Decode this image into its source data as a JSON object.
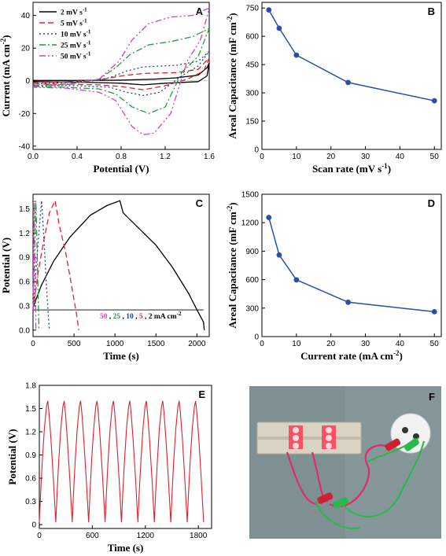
{
  "chart_data": [
    {
      "panel": "A",
      "type": "line",
      "xlabel": "Potential (V)",
      "ylabel": "Current (mA cm",
      "ylabel_sup": "-2",
      "ylabel_end": ")",
      "xlim": [
        0,
        1.6
      ],
      "ylim": [
        -42,
        48
      ],
      "xticks": [
        0.0,
        0.4,
        0.8,
        1.2,
        1.6
      ],
      "xtick_labels": [
        "0.0",
        "0.4",
        "0.8",
        "1.2",
        "1.6"
      ],
      "yticks": [
        -40,
        -20,
        0,
        20,
        40
      ],
      "ytick_labels": [
        "-40",
        "-20",
        "0",
        "20",
        "40"
      ],
      "legend": "top-left",
      "series": [
        {
          "name": "2 mV s",
          "sup": "-1",
          "color": "#000000",
          "dash": "",
          "upper": [
            [
              0,
              0.2
            ],
            [
              0.4,
              0.2
            ],
            [
              0.8,
              0.4
            ],
            [
              1.1,
              1.0
            ],
            [
              1.3,
              1.8
            ],
            [
              1.5,
              3.5
            ],
            [
              1.58,
              8
            ],
            [
              1.6,
              11
            ]
          ],
          "lower": [
            [
              1.6,
              11
            ],
            [
              1.58,
              3
            ],
            [
              1.5,
              -0.5
            ],
            [
              1.2,
              -1.5
            ],
            [
              1.0,
              -2.5
            ],
            [
              0.8,
              -1.5
            ],
            [
              0.4,
              -0.8
            ],
            [
              0,
              -0.5
            ]
          ]
        },
        {
          "name": "5 mV s",
          "sup": "-1",
          "color": "#e0202a",
          "dash": "7,4",
          "upper": [
            [
              0,
              -1.2
            ],
            [
              0.3,
              -0.5
            ],
            [
              0.6,
              0.5
            ],
            [
              0.8,
              3
            ],
            [
              1.0,
              4.5
            ],
            [
              1.3,
              5
            ],
            [
              1.5,
              7
            ],
            [
              1.6,
              14
            ]
          ],
          "lower": [
            [
              1.6,
              14
            ],
            [
              1.55,
              6
            ],
            [
              1.4,
              1
            ],
            [
              1.2,
              -3
            ],
            [
              1.0,
              -5.5
            ],
            [
              0.8,
              -3.5
            ],
            [
              0.6,
              -2.5
            ],
            [
              0.3,
              -2
            ],
            [
              0,
              -2
            ]
          ]
        },
        {
          "name": "10 mV s",
          "sup": "-1",
          "color": "#22439a",
          "dash": "2,3",
          "upper": [
            [
              0,
              -2
            ],
            [
              0.3,
              -1
            ],
            [
              0.55,
              0
            ],
            [
              0.7,
              2
            ],
            [
              0.85,
              6
            ],
            [
              1.0,
              8.5
            ],
            [
              1.3,
              9.5
            ],
            [
              1.5,
              12
            ],
            [
              1.6,
              18
            ]
          ],
          "lower": [
            [
              1.6,
              18
            ],
            [
              1.5,
              9
            ],
            [
              1.35,
              3
            ],
            [
              1.15,
              -7
            ],
            [
              1.0,
              -9
            ],
            [
              0.85,
              -7
            ],
            [
              0.7,
              -4
            ],
            [
              0.4,
              -3
            ],
            [
              0,
              -2.8
            ]
          ]
        },
        {
          "name": "25 mV s",
          "sup": "-1",
          "color": "#1e9e38",
          "dash": "8,3,2,3",
          "upper": [
            [
              0,
              -3
            ],
            [
              0.3,
              -2
            ],
            [
              0.6,
              1
            ],
            [
              0.75,
              8
            ],
            [
              0.88,
              16
            ],
            [
              1.05,
              22
            ],
            [
              1.25,
              24
            ],
            [
              1.45,
              27
            ],
            [
              1.6,
              32
            ]
          ],
          "lower": [
            [
              1.6,
              32
            ],
            [
              1.5,
              15
            ],
            [
              1.35,
              5
            ],
            [
              1.2,
              -16
            ],
            [
              1.05,
              -20
            ],
            [
              0.9,
              -16
            ],
            [
              0.75,
              -8
            ],
            [
              0.6,
              -5
            ],
            [
              0.3,
              -4
            ],
            [
              0,
              -3.5
            ]
          ]
        },
        {
          "name": "50 mV s",
          "sup": "-1",
          "color": "#d63fbf",
          "dash": "8,3,2,3,2,3",
          "upper": [
            [
              0,
              -3.5
            ],
            [
              0.3,
              -2.5
            ],
            [
              0.6,
              1
            ],
            [
              0.78,
              12
            ],
            [
              0.9,
              25
            ],
            [
              1.05,
              35
            ],
            [
              1.25,
              39
            ],
            [
              1.45,
              40
            ],
            [
              1.58,
              44
            ],
            [
              1.6,
              44
            ]
          ],
          "lower": [
            [
              1.6,
              44
            ],
            [
              1.52,
              25
            ],
            [
              1.4,
              12
            ],
            [
              1.25,
              -20
            ],
            [
              1.1,
              -32
            ],
            [
              1.0,
              -33
            ],
            [
              0.9,
              -28
            ],
            [
              0.75,
              -12
            ],
            [
              0.6,
              -7
            ],
            [
              0.3,
              -4.5
            ],
            [
              0,
              -4
            ]
          ]
        }
      ]
    },
    {
      "panel": "B",
      "type": "line",
      "xlabel": "Scan rate (mV s",
      "xlabel_sup": "-1",
      "xlabel_end": ")",
      "ylabel": "Areal Capacitance (mF cm",
      "ylabel_sup": "-2",
      "ylabel_end": ")",
      "xlim": [
        0,
        52
      ],
      "ylim": [
        0,
        780
      ],
      "xticks": [
        0,
        10,
        20,
        30,
        40,
        50
      ],
      "yticks": [
        0,
        150,
        300,
        450,
        600,
        750
      ],
      "color": "#2a4fa8",
      "x": [
        2,
        5,
        10,
        25,
        50
      ],
      "y": [
        740,
        643,
        500,
        355,
        258
      ]
    },
    {
      "panel": "C",
      "type": "line",
      "xlabel": "Time (s)",
      "ylabel": "Potential (V)",
      "xlim": [
        0,
        2150
      ],
      "ylim": [
        -0.08,
        1.68
      ],
      "xticks": [
        0,
        500,
        1000,
        1500,
        2000
      ],
      "yticks": [
        0.0,
        0.3,
        0.6,
        0.9,
        1.2,
        1.5
      ],
      "ytick_labels": [
        "0.0",
        "0.3",
        "0.6",
        "0.9",
        "1.2",
        "1.5"
      ],
      "hline": 0.25,
      "legend_rates": [
        {
          "text": "50",
          "color": "#d63fbf"
        },
        {
          "text": "25",
          "color": "#1e9e38"
        },
        {
          "text": "10",
          "color": "#22439a"
        },
        {
          "text": "5",
          "color": "#e0202a"
        },
        {
          "text": "2 mA cm",
          "color": "#000000"
        }
      ],
      "legend_sep": ",",
      "legend_sup": "-2",
      "series": [
        {
          "name": "2",
          "color": "#000000",
          "dash": "",
          "points": [
            [
              0,
              0.28
            ],
            [
              100,
              0.55
            ],
            [
              250,
              0.85
            ],
            [
              450,
              1.15
            ],
            [
              700,
              1.42
            ],
            [
              900,
              1.54
            ],
            [
              1060,
              1.6
            ],
            [
              1100,
              1.45
            ],
            [
              1300,
              1.25
            ],
            [
              1500,
              1.05
            ],
            [
              1700,
              0.78
            ],
            [
              1900,
              0.45
            ],
            [
              2000,
              0.25
            ],
            [
              2080,
              0.1
            ],
            [
              2090,
              0
            ]
          ]
        },
        {
          "name": "5",
          "color": "#e0202a",
          "dash": "7,4",
          "points": [
            [
              0,
              0.25
            ],
            [
              60,
              0.7
            ],
            [
              130,
              1.1
            ],
            [
              200,
              1.45
            ],
            [
              270,
              1.6
            ],
            [
              320,
              1.3
            ],
            [
              400,
              0.95
            ],
            [
              470,
              0.55
            ],
            [
              530,
              0.2
            ],
            [
              560,
              0
            ]
          ]
        },
        {
          "name": "10",
          "color": "#22439a",
          "dash": "2,3",
          "points": [
            [
              0,
              0.25
            ],
            [
              40,
              0.8
            ],
            [
              80,
              1.3
            ],
            [
              105,
              1.6
            ],
            [
              130,
              1.2
            ],
            [
              160,
              0.6
            ],
            [
              185,
              0.2
            ],
            [
              200,
              0
            ]
          ]
        },
        {
          "name": "25",
          "color": "#1e9e38",
          "dash": "8,3,2,3",
          "points": [
            [
              0,
              0.25
            ],
            [
              18,
              0.9
            ],
            [
              35,
              1.6
            ],
            [
              50,
              1.0
            ],
            [
              65,
              0.3
            ],
            [
              72,
              0
            ]
          ]
        },
        {
          "name": "50",
          "color": "#d63fbf",
          "dash": "8,3,2,3,2,3",
          "points": [
            [
              0,
              0.25
            ],
            [
              8,
              0.9
            ],
            [
              16,
              1.6
            ],
            [
              24,
              0.9
            ],
            [
              32,
              0.2
            ],
            [
              36,
              0
            ]
          ]
        }
      ]
    },
    {
      "panel": "D",
      "type": "line",
      "xlabel": "Current rate (mA cm",
      "xlabel_sup": "-2",
      "xlabel_end": ")",
      "ylabel": "Areal Capacitance (mF cm",
      "ylabel_sup": "-2",
      "ylabel_end": ")",
      "xlim": [
        0,
        52
      ],
      "ylim": [
        0,
        1500
      ],
      "xticks": [
        0,
        10,
        20,
        30,
        40,
        50
      ],
      "yticks": [
        0,
        300,
        600,
        900,
        1200,
        1500
      ],
      "color": "#2a4fa8",
      "x": [
        2,
        5,
        10,
        25,
        50
      ],
      "y": [
        1255,
        860,
        598,
        362,
        262
      ]
    },
    {
      "panel": "E",
      "type": "line",
      "xlabel": "Time (s)",
      "ylabel": "Potential (V)",
      "xlim": [
        0,
        1950
      ],
      "ylim": [
        -0.05,
        1.8
      ],
      "xticks": [
        0,
        600,
        1200,
        1800
      ],
      "yticks": [
        0.0,
        0.3,
        0.6,
        0.9,
        1.2,
        1.5,
        1.8
      ],
      "ytick_labels": [
        "0",
        "0.3",
        "0.6",
        "0.9",
        "1.2",
        "1.5",
        "1.8"
      ],
      "color": "#e0202a",
      "cycles": 10,
      "period": 186,
      "charge_time": 95,
      "vmax": 1.6,
      "vmin": 0.03
    }
  ],
  "photo": {
    "label": "F",
    "colors": {
      "breadboard": "#d9d3c4",
      "led": "#ff3a55",
      "red_wire": "#e4286d",
      "green_wire": "#2fb54a",
      "clip_red": "#d02030",
      "clip_green": "#2bb84a",
      "device": "#f2f2f2"
    }
  }
}
